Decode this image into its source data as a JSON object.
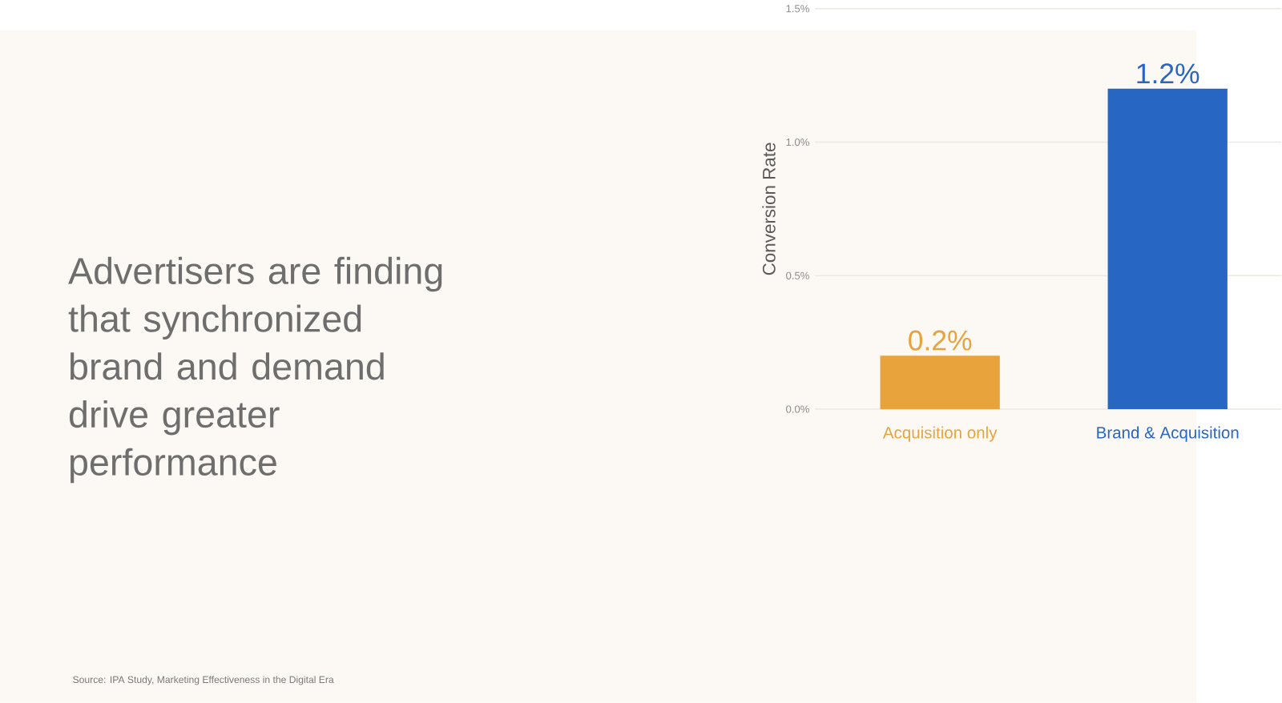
{
  "chart_data": {
    "type": "bar",
    "title": "Advertisers are finding that synchronized brand and demand drive greater performance",
    "ylabel": "Conversion Rate",
    "categories": [
      "Acquisition only",
      "Brand & Acquisition"
    ],
    "values": [
      0.2,
      1.2
    ],
    "value_labels": [
      "0.2%",
      "1.2%"
    ],
    "colors": [
      "#e8a33d",
      "#2866c4"
    ],
    "ylim": [
      0,
      1.5
    ],
    "yticks": [
      {
        "value": 0,
        "label": "0.0%"
      },
      {
        "value": 0.5,
        "label": "0.5%"
      },
      {
        "value": 1.0,
        "label": "1.0%"
      },
      {
        "value": 1.5,
        "label": "1.5%"
      }
    ],
    "grid": "y",
    "annotations": [
      "Source: IPA Study, Marketing Effectiveness in the Digital Era"
    ]
  }
}
